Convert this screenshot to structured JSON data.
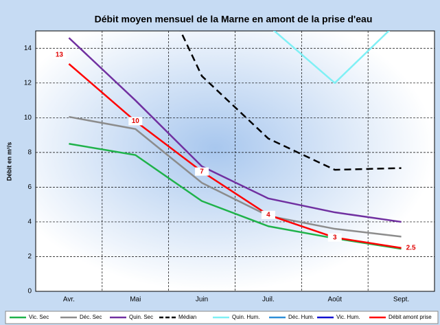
{
  "chart_data": {
    "type": "line",
    "title": "Débit moyen mensuel de la Marne en amont de la prise d'eau",
    "y_label": "Débit en m³/s",
    "categories": [
      "Avr.",
      "Mai",
      "Juin",
      "Juil.",
      "Août",
      "Sept."
    ],
    "ylim": [
      0,
      15
    ],
    "yticks": [
      0,
      2,
      4,
      6,
      8,
      10,
      12,
      14
    ],
    "grid": true,
    "legend": "bottom",
    "series": [
      {
        "name": "Vic. Sec",
        "color": "#1fb24a",
        "values": [
          8.5,
          7.85,
          5.2,
          3.75,
          3.05,
          2.45
        ]
      },
      {
        "name": "Déc. Sec",
        "color": "#8c8c8c",
        "values": [
          10.05,
          9.35,
          6.25,
          4.35,
          3.6,
          3.15
        ]
      },
      {
        "name": "Quin. Sec",
        "color": "#7030a0",
        "values": [
          14.6,
          11.0,
          7.2,
          5.35,
          4.55,
          4.0
        ]
      },
      {
        "name": "Médian",
        "color": "#000000",
        "dashed": true,
        "values": [
          null,
          20.5,
          12.4,
          8.8,
          7.0,
          7.1
        ]
      },
      {
        "name": "Quin. Hum.",
        "color": "#7ff0f5",
        "values": [
          null,
          null,
          null,
          15.3,
          12.0,
          15.7
        ]
      },
      {
        "name": "Déc. Hum.",
        "color": "#2e8fd8",
        "values": [
          null,
          null,
          null,
          null,
          null,
          null
        ]
      },
      {
        "name": "Vic. Hum.",
        "color": "#1010d0",
        "values": [
          null,
          null,
          null,
          null,
          null,
          null
        ]
      },
      {
        "name": "Débit amont prise",
        "color": "#ff0000",
        "values": [
          13.1,
          9.8,
          6.9,
          4.4,
          3.1,
          2.5
        ],
        "value_labels": [
          "13",
          "10",
          "7",
          "4",
          "3",
          "2.5"
        ]
      }
    ]
  }
}
